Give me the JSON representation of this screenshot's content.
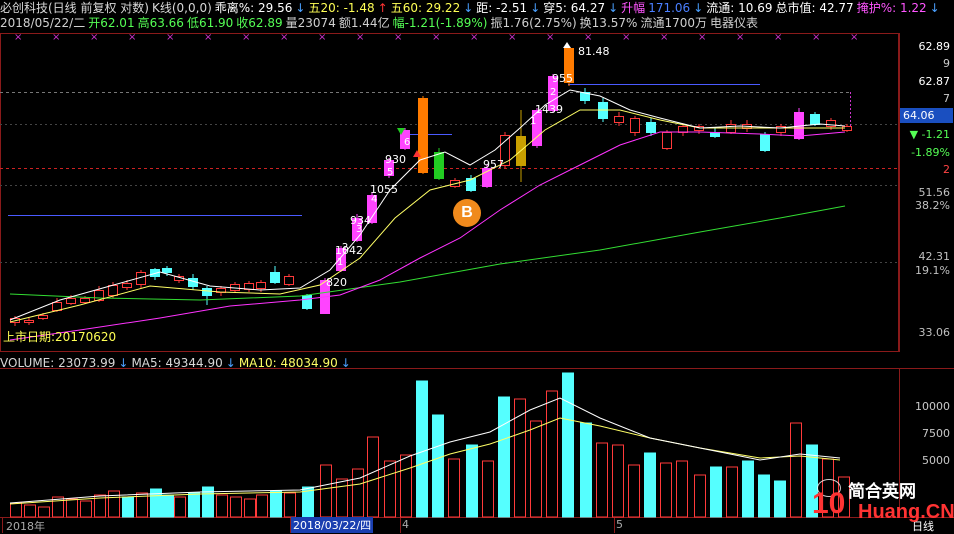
{
  "header": {
    "line1": [
      {
        "t": "必创科技(日线 前复权 对数)",
        "c": "#d8d8d8"
      },
      {
        "t": "K线(0,0,0)",
        "c": "#d8d8d8"
      },
      {
        "t": "乖离%: 29.56",
        "c": "#ffffff"
      },
      {
        "t": "↓",
        "c": "#4aa0ff"
      },
      {
        "t": "五20: -1.48",
        "c": "#ffff55"
      },
      {
        "t": "↑",
        "c": "#ff3333"
      },
      {
        "t": "五60: 29.22",
        "c": "#ffff55"
      },
      {
        "t": "↓",
        "c": "#4aa0ff"
      },
      {
        "t": "距: -2.51",
        "c": "#ffffff"
      },
      {
        "t": "↓",
        "c": "#4aa0ff"
      },
      {
        "t": "穿5: 64.27",
        "c": "#ffffff"
      },
      {
        "t": "↓",
        "c": "#4aa0ff"
      },
      {
        "t": "升幅",
        "c": "#ff55ff"
      },
      {
        "t": "171.06",
        "c": "#4a7fff"
      },
      {
        "t": "↓",
        "c": "#4aa0ff"
      },
      {
        "t": "流通: 10.69",
        "c": "#ffffff"
      },
      {
        "t": "总市值: 42.77",
        "c": "#ffffff"
      },
      {
        "t": "掩护%: 1.22",
        "c": "#ff55ff"
      },
      {
        "t": "↓",
        "c": "#4aa0ff"
      }
    ],
    "line2": [
      {
        "t": "2018/05/22/二",
        "c": "#d0d0d0"
      },
      {
        "t": "开62.01",
        "c": "#55ff55"
      },
      {
        "t": "高63.66",
        "c": "#55ff55"
      },
      {
        "t": "低61.90",
        "c": "#55ff55"
      },
      {
        "t": "收62.89",
        "c": "#55ff55"
      },
      {
        "t": "量23074",
        "c": "#d0d0d0"
      },
      {
        "t": "额1.44亿",
        "c": "#d0d0d0"
      },
      {
        "t": "幅-1.21(-1.89%)",
        "c": "#55ff55"
      },
      {
        "t": "振1.76(2.75%)",
        "c": "#d0d0d0"
      },
      {
        "t": "换13.57%",
        "c": "#d0d0d0"
      },
      {
        "t": "流通1700万",
        "c": "#d0d0d0"
      },
      {
        "t": "电器仪表",
        "c": "#d0d0d0"
      }
    ]
  },
  "right_axis": {
    "labels": [
      {
        "t": "62.89",
        "c": "#ffffff"
      },
      {
        "t": "9",
        "c": "#cccccc"
      },
      {
        "t": "62.87",
        "c": "#ffffff"
      },
      {
        "t": "7",
        "c": "#cccccc"
      },
      {
        "t": "▼ -1.21",
        "c": "#55ff55"
      },
      {
        "t": "-1.89%",
        "c": "#55ff55"
      },
      {
        "t": "2",
        "c": "#ff4444"
      },
      {
        "t": "51.56",
        "c": "#c0c0c0"
      },
      {
        "t": "38.2%",
        "c": "#c0c0c0"
      },
      {
        "t": "42.31",
        "c": "#c0c0c0"
      },
      {
        "t": "19.1%",
        "c": "#c0c0c0"
      },
      {
        "t": "33.06",
        "c": "#c0c0c0"
      }
    ],
    "current_price": "64.06",
    "volume_labels": [
      "10000",
      "7500",
      "5000"
    ]
  },
  "annotations": {
    "top_price": "81.48",
    "list_date": "上市日期:20170620",
    "marker": "B",
    "day_labels": [
      "1",
      "2",
      "3",
      "4",
      "5",
      "6",
      "1",
      "2"
    ],
    "amount_labels": [
      "820",
      "1042",
      "934",
      "1055",
      "930",
      "957",
      "1439",
      "955"
    ]
  },
  "volume_header": [
    {
      "t": "VOLUME: 23073.99",
      "c": "#d8d8d8"
    },
    {
      "t": "↓",
      "c": "#4aa0ff"
    },
    {
      "t": "MA5: 49344.90",
      "c": "#d8d8d8"
    },
    {
      "t": "↓",
      "c": "#4aa0ff"
    },
    {
      "t": "MA10: 48034.90",
      "c": "#ffff66"
    },
    {
      "t": "↓",
      "c": "#4aa0ff"
    }
  ],
  "date_axis": {
    "left_label": "2018年",
    "selected_date": "2018/03/22/四",
    "month4": "4",
    "month5": "5",
    "right_label": "日线"
  },
  "watermark": {
    "text": "简合英网",
    "brand_num": "10",
    "brand_site": "Huang.CN"
  },
  "colors": {
    "up": "#ff3a3a",
    "down": "#55ffff",
    "ma5": "#ffffff",
    "ma10": "#ffff66",
    "ma20": "#ff33ff",
    "ma60": "#33dd33",
    "volume_up": "#ff3a3a",
    "volume_down": "#55ffff"
  }
}
